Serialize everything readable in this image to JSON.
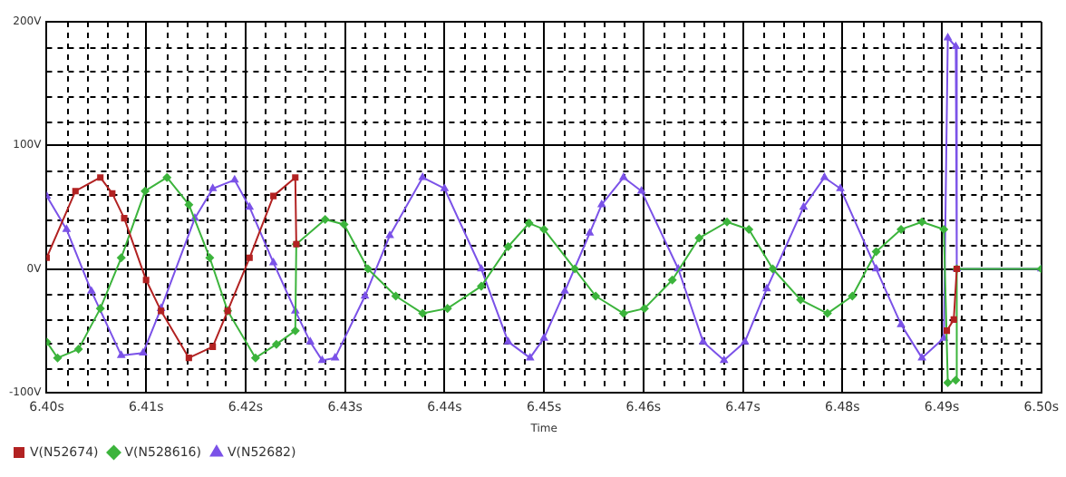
{
  "chart_data": {
    "type": "line",
    "xlabel": "Time",
    "xlim": [
      6.4,
      6.5
    ],
    "xticks": [
      {
        "value": 6.4,
        "label": "6.40s"
      },
      {
        "value": 6.402,
        "label": null
      },
      {
        "value": 6.404,
        "label": null
      },
      {
        "value": 6.406,
        "label": null
      },
      {
        "value": 6.408,
        "label": null
      },
      {
        "value": 6.41,
        "label": "6.41s"
      },
      {
        "value": 6.412,
        "label": null
      },
      {
        "value": 6.414,
        "label": null
      },
      {
        "value": 6.416,
        "label": null
      },
      {
        "value": 6.418,
        "label": null
      },
      {
        "value": 6.42,
        "label": "6.42s"
      },
      {
        "value": 6.422,
        "label": null
      },
      {
        "value": 6.424,
        "label": null
      },
      {
        "value": 6.426,
        "label": null
      },
      {
        "value": 6.428,
        "label": null
      },
      {
        "value": 6.43,
        "label": "6.43s"
      },
      {
        "value": 6.432,
        "label": null
      },
      {
        "value": 6.434,
        "label": null
      },
      {
        "value": 6.436,
        "label": null
      },
      {
        "value": 6.438,
        "label": null
      },
      {
        "value": 6.44,
        "label": "6.44s"
      },
      {
        "value": 6.442,
        "label": null
      },
      {
        "value": 6.444,
        "label": null
      },
      {
        "value": 6.446,
        "label": null
      },
      {
        "value": 6.448,
        "label": null
      },
      {
        "value": 6.45,
        "label": "6.45s"
      },
      {
        "value": 6.452,
        "label": null
      },
      {
        "value": 6.454,
        "label": null
      },
      {
        "value": 6.456,
        "label": null
      },
      {
        "value": 6.458,
        "label": null
      },
      {
        "value": 6.46,
        "label": "6.46s"
      },
      {
        "value": 6.462,
        "label": null
      },
      {
        "value": 6.464,
        "label": null
      },
      {
        "value": 6.466,
        "label": null
      },
      {
        "value": 6.468,
        "label": null
      },
      {
        "value": 6.47,
        "label": "6.47s"
      },
      {
        "value": 6.472,
        "label": null
      },
      {
        "value": 6.474,
        "label": null
      },
      {
        "value": 6.476,
        "label": null
      },
      {
        "value": 6.478,
        "label": null
      },
      {
        "value": 6.48,
        "label": "6.48s"
      },
      {
        "value": 6.482,
        "label": null
      },
      {
        "value": 6.484,
        "label": null
      },
      {
        "value": 6.486,
        "label": null
      },
      {
        "value": 6.488,
        "label": null
      },
      {
        "value": 6.49,
        "label": "6.49s"
      },
      {
        "value": 6.492,
        "label": null
      },
      {
        "value": 6.494,
        "label": null
      },
      {
        "value": 6.496,
        "label": null
      },
      {
        "value": 6.498,
        "label": null
      },
      {
        "value": 6.5,
        "label": "6.50s"
      }
    ],
    "ylim": [
      -100,
      200
    ],
    "yticks": [
      {
        "value": -100,
        "label": "-100V"
      },
      {
        "value": -80,
        "label": null
      },
      {
        "value": -60,
        "label": null
      },
      {
        "value": -40,
        "label": null
      },
      {
        "value": -20,
        "label": null
      },
      {
        "value": 0,
        "label": "0V"
      },
      {
        "value": 20,
        "label": null
      },
      {
        "value": 40,
        "label": null
      },
      {
        "value": 60,
        "label": null
      },
      {
        "value": 80,
        "label": null
      },
      {
        "value": 100,
        "label": "100V"
      },
      {
        "value": 120,
        "label": null
      },
      {
        "value": 140,
        "label": null
      },
      {
        "value": 160,
        "label": null
      },
      {
        "value": 180,
        "label": null
      },
      {
        "value": 200,
        "label": "200V"
      }
    ],
    "grid": true,
    "legend": "bottom left",
    "line_style": "solid",
    "series": [
      {
        "name": "V(N52674)",
        "color": "#b22222",
        "marker": "square",
        "x": [
          6.4,
          6.4029,
          6.4054,
          6.4066,
          6.4078,
          6.41,
          6.4115,
          6.4143,
          6.4167,
          6.4182,
          6.4204,
          6.4228,
          6.425,
          6.4251,
          6.45,
          6.4905,
          6.4912,
          6.4915
        ],
        "values": [
          9,
          63,
          74,
          61,
          41,
          -9,
          -34,
          -72,
          -63,
          -34,
          9,
          59,
          74,
          20,
          null,
          -50,
          -41,
          0
        ]
      },
      {
        "name": "V(N528616)",
        "color": "#3cb43c",
        "marker": "diamond",
        "x": [
          6.4,
          6.4011,
          6.4032,
          6.4054,
          6.4075,
          6.4099,
          6.4121,
          6.4143,
          6.4164,
          6.4182,
          6.421,
          6.4231,
          6.425,
          6.4251,
          6.428,
          6.4299,
          6.4323,
          6.4351,
          6.4378,
          6.4403,
          6.4437,
          6.4464,
          6.4485,
          6.45,
          6.4531,
          6.4552,
          6.458,
          6.4601,
          6.4629,
          6.4656,
          6.4684,
          6.4706,
          6.473,
          6.4758,
          6.4785,
          6.481,
          6.4834,
          6.4859,
          6.488,
          6.4902,
          6.4906,
          6.4914,
          6.4915,
          6.5
        ],
        "values": [
          -59,
          -72,
          -65,
          -32,
          9,
          63,
          74,
          52,
          9,
          -34,
          -72,
          -61,
          -50,
          20,
          40,
          36,
          0,
          -22,
          -36,
          -32,
          -14,
          18,
          37,
          32,
          0,
          -22,
          -36,
          -32,
          -9,
          25,
          38,
          32,
          0,
          -25,
          -36,
          -22,
          14,
          32,
          38,
          32,
          -92,
          -90,
          0,
          0
        ]
      },
      {
        "name": "V(N52682)",
        "color": "#7b52e8",
        "marker": "triangle",
        "x": [
          6.4,
          6.402,
          6.4045,
          6.4075,
          6.4097,
          6.4115,
          6.4149,
          6.4167,
          6.4189,
          6.4204,
          6.4228,
          6.425,
          6.4265,
          6.4277,
          6.429,
          6.432,
          6.4345,
          6.4378,
          6.44,
          6.4437,
          6.4464,
          6.4486,
          6.45,
          6.4521,
          6.4546,
          6.4558,
          6.458,
          6.4598,
          6.4635,
          6.466,
          6.4681,
          6.4702,
          6.4724,
          6.4761,
          6.4782,
          6.4798,
          6.4834,
          6.4859,
          6.488,
          6.4902,
          6.4906,
          6.4914,
          6.4915,
          6.5
        ],
        "values": [
          59,
          32,
          -18,
          -70,
          -68,
          -32,
          41,
          65,
          72,
          50,
          5,
          -34,
          -59,
          -74,
          -72,
          -22,
          27,
          74,
          65,
          0,
          -59,
          -72,
          -56,
          -18,
          29,
          52,
          74,
          63,
          0,
          -59,
          -74,
          -59,
          -16,
          50,
          74,
          65,
          0,
          -45,
          -72,
          -56,
          187,
          180,
          0,
          0
        ]
      }
    ]
  }
}
